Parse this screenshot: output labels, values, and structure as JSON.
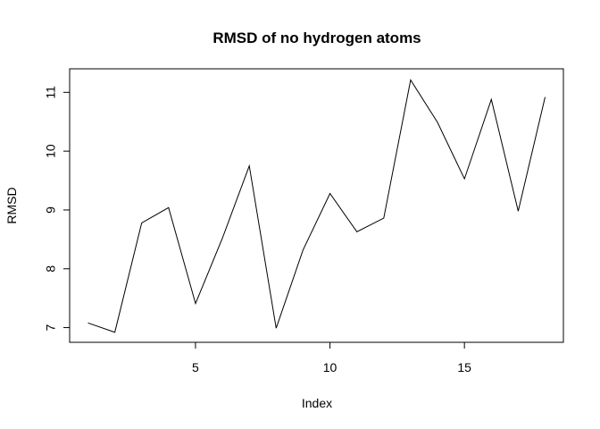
{
  "chart_data": {
    "type": "line",
    "title": "RMSD of no hydrogen atoms",
    "xlabel": "Index",
    "ylabel": "RMSD",
    "x": [
      1,
      2,
      3,
      4,
      5,
      6,
      7,
      8,
      9,
      10,
      11,
      12,
      13,
      14,
      15,
      16,
      17,
      18
    ],
    "values": [
      7.08,
      6.92,
      8.78,
      9.04,
      7.41,
      8.52,
      9.75,
      6.99,
      8.32,
      9.28,
      8.63,
      8.86,
      11.21,
      10.49,
      9.53,
      10.88,
      8.98,
      10.92
    ],
    "xlim": [
      0.32,
      18.68
    ],
    "ylim": [
      6.75,
      11.4
    ],
    "xticks": [
      5,
      10,
      15
    ],
    "yticks": [
      7,
      8,
      9,
      10,
      11
    ],
    "grid": false,
    "line_color": "#000000"
  }
}
